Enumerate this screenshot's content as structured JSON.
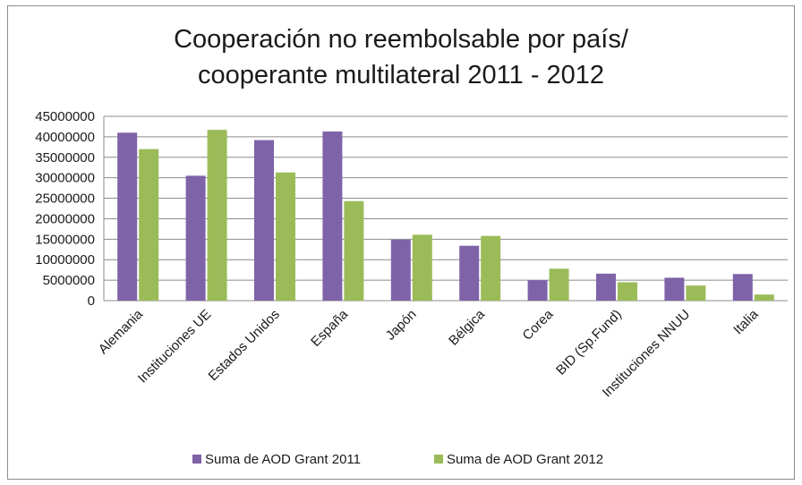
{
  "chart_data": {
    "type": "bar",
    "title_line1": "Cooperación no reembolsable por país/",
    "title_line2": "cooperante multilateral 2011 - 2012",
    "categories": [
      "Alemania",
      "Instituciones UE",
      "Estados Unidos",
      "España",
      "Japón",
      "Bélgica",
      "Corea",
      "BID (Sp.Fund)",
      "Instituciones NNUU",
      "Italia"
    ],
    "series": [
      {
        "name": "Suma de AOD Grant 2011",
        "color": "#7f63a8",
        "values": [
          41000000,
          30500000,
          39200000,
          41300000,
          14900000,
          13400000,
          5000000,
          6600000,
          5600000,
          6500000
        ]
      },
      {
        "name": "Suma de AOD Grant 2012",
        "color": "#9bbb59",
        "values": [
          37000000,
          41700000,
          31300000,
          24300000,
          16100000,
          15800000,
          7800000,
          4500000,
          3700000,
          1500000
        ]
      }
    ],
    "ylim": [
      0,
      45000000
    ],
    "yticks": [
      "45000000",
      "40000000",
      "35000000",
      "30000000",
      "25000000",
      "20000000",
      "15000000",
      "10000000",
      "5000000",
      "0"
    ],
    "grid": true,
    "legend_position": "bottom"
  }
}
